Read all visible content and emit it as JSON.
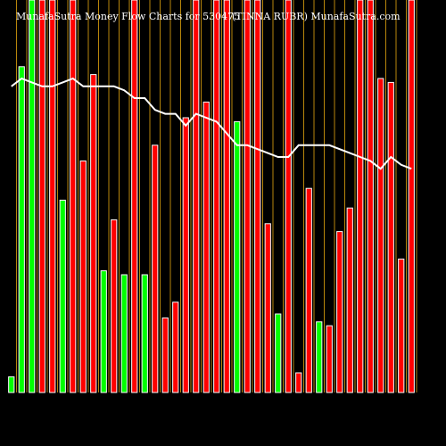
{
  "chart_data": {
    "type": "bar",
    "title": "MunafaSutra  Money Flow  Charts for 530475",
    "subtitle": "(TINNA RUBR) MunafaSutra.com",
    "values": [
      4,
      83,
      100,
      100,
      100,
      49,
      100,
      59,
      81,
      31,
      44,
      30,
      100,
      30,
      63,
      19,
      23,
      70,
      100,
      74,
      100,
      100,
      69,
      100,
      100,
      43,
      20,
      100,
      5,
      52,
      18,
      17,
      41,
      47,
      100,
      100,
      80,
      79,
      34,
      100
    ],
    "bar_colors": [
      "#00ff00",
      "#00ff00",
      "#00ff00",
      "#ff0000",
      "#ff0000",
      "#00ff00",
      "#ff0000",
      "#ff0000",
      "#ff0000",
      "#00ff00",
      "#ff0000",
      "#00ff00",
      "#ff0000",
      "#00ff00",
      "#ff0000",
      "#ff0000",
      "#ff0000",
      "#ff0000",
      "#ff0000",
      "#ff0000",
      "#ff0000",
      "#ff0000",
      "#00ff00",
      "#ff0000",
      "#ff0000",
      "#ff0000",
      "#00ff00",
      "#ff0000",
      "#ff0000",
      "#ff0000",
      "#00ff00",
      "#ff0000",
      "#ff0000",
      "#ff0000",
      "#ff0000",
      "#ff0000",
      "#ff0000",
      "#ff0000",
      "#ff0000",
      "#ff0000"
    ],
    "line": {
      "color": "#ffffff",
      "values": [
        78,
        80,
        79,
        78,
        78,
        79,
        80,
        78,
        78,
        78,
        78,
        77,
        75,
        75,
        72,
        71,
        71,
        68,
        71,
        70,
        69,
        66,
        63,
        63,
        62,
        61,
        60,
        60,
        63,
        63,
        63,
        63,
        62,
        61,
        60,
        59,
        57,
        60,
        58,
        57
      ]
    },
    "ylim": [
      0,
      100
    ],
    "separator_color": "#b8860b"
  }
}
